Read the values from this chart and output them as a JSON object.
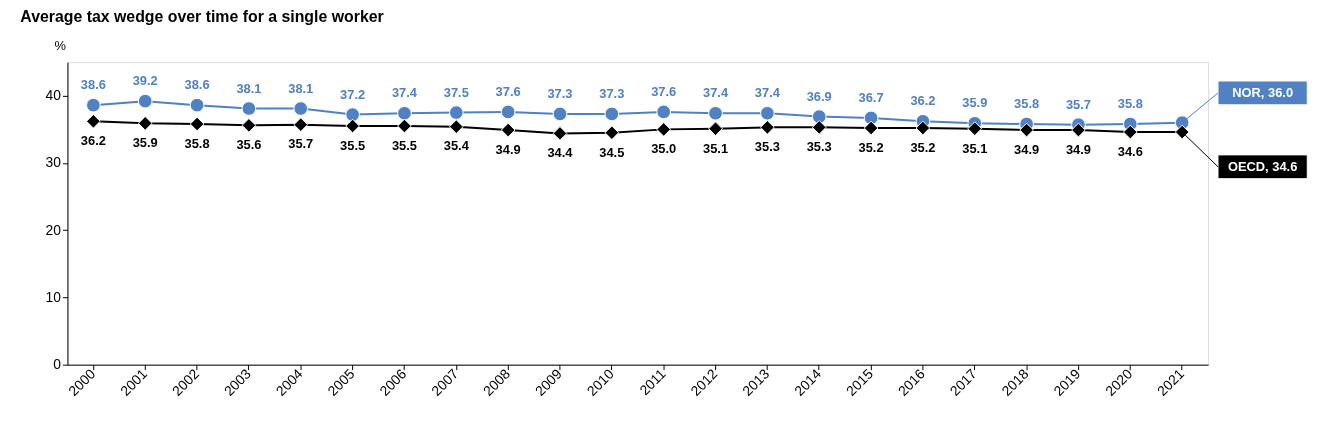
{
  "chart_data": {
    "type": "line",
    "title": "Average tax wedge over time for a single worker",
    "ylabel": "%",
    "categories": [
      "2000",
      "2001",
      "2002",
      "2003",
      "2004",
      "2005",
      "2006",
      "2007",
      "2008",
      "2009",
      "2010",
      "2011",
      "2012",
      "2013",
      "2014",
      "2015",
      "2016",
      "2017",
      "2018",
      "2019",
      "2020",
      "2021"
    ],
    "series": [
      {
        "color": "#4f81c3",
        "marker": "circle",
        "values": [
          38.6,
          39.2,
          38.6,
          38.1,
          38.1,
          37.2,
          37.4,
          37.5,
          37.6,
          37.3,
          37.3,
          37.6,
          37.4,
          37.4,
          36.9,
          36.7,
          36.2,
          35.9,
          35.8,
          35.7,
          35.8,
          36.0
        ],
        "value_labels": [
          "38.6",
          "39.2",
          "38.6",
          "38.1",
          "38.1",
          "37.2",
          "37.4",
          "37.5",
          "37.6",
          "37.3",
          "37.3",
          "37.6",
          "37.4",
          "37.4",
          "36.9",
          "36.7",
          "36.2",
          "35.9",
          "35.8",
          "35.7",
          "35.8",
          null
        ]
      },
      {
        "color": "#000000",
        "marker": "diamond",
        "values": [
          36.2,
          35.9,
          35.8,
          35.6,
          35.7,
          35.5,
          35.5,
          35.4,
          34.9,
          34.4,
          34.5,
          35.0,
          35.1,
          35.3,
          35.3,
          35.2,
          35.2,
          35.1,
          34.9,
          34.9,
          34.6,
          34.6
        ],
        "value_labels": [
          "36.2",
          "35.9",
          "35.8",
          "35.6",
          "35.7",
          "35.5",
          "35.5",
          "35.4",
          "34.9",
          "34.4",
          "34.5",
          "35.0",
          "35.1",
          "35.3",
          "35.3",
          "35.2",
          "35.2",
          "35.1",
          "34.9",
          "34.9",
          "34.6",
          null
        ]
      }
    ],
    "annotations": [
      {
        "text": "NOR, 36.0",
        "x": "2021",
        "y": 36.0
      },
      {
        "text": "OECD, 34.6",
        "x": "2021",
        "y": 34.6
      }
    ],
    "ylim": [
      0,
      45
    ],
    "yticks": [
      0,
      10,
      20,
      30,
      40
    ],
    "grid": false,
    "line_style": "solid"
  }
}
